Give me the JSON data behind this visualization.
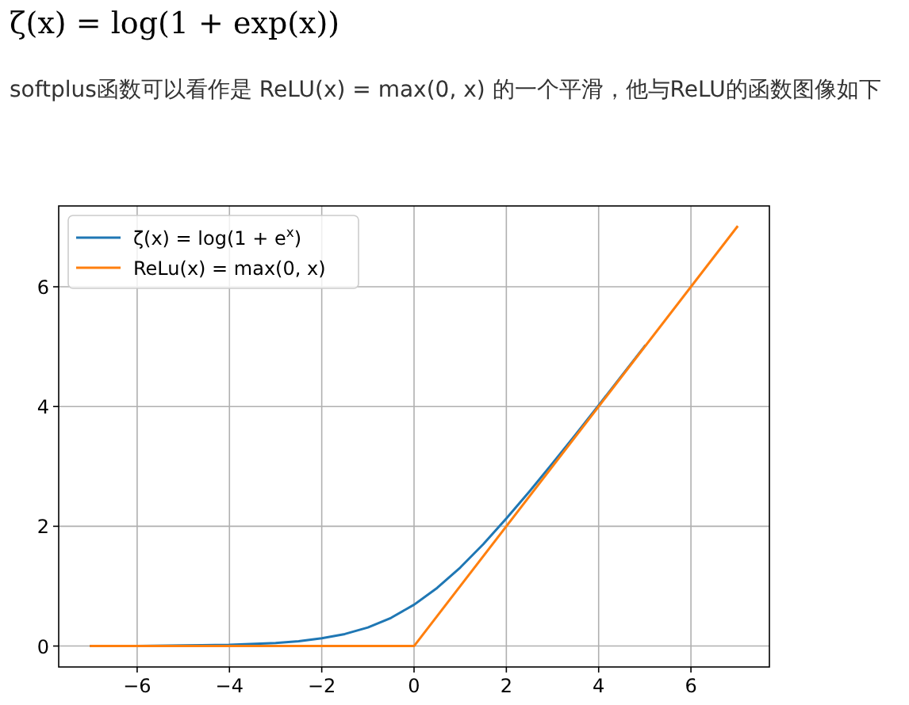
{
  "chart_data": {
    "type": "line",
    "title": "ζ(x) = log(1 + exp(x))",
    "subtitle": "softplus函数可以看作是 ReLU(x) = max(0, x) 的一个平滑，他与ReLU的函数图像如下",
    "series": [
      {
        "name": "ζ(x) = log(1 + e$^{x}$)",
        "color": "#1f77b4",
        "x": [
          -7,
          -6,
          -5,
          -4,
          -3,
          -2.5,
          -2,
          -1.5,
          -1,
          -0.5,
          0,
          0.5,
          1,
          1.5,
          2,
          2.5,
          3,
          3.5,
          4,
          5
        ],
        "values": [
          0,
          0,
          0.01,
          0.02,
          0.05,
          0.08,
          0.13,
          0.2,
          0.31,
          0.47,
          0.69,
          0.97,
          1.31,
          1.7,
          2.13,
          2.58,
          3.05,
          3.53,
          4.02,
          5.01
        ]
      },
      {
        "name": "ReLu(x) = max(0, x)",
        "color": "#ff7f0e",
        "x": [
          -7,
          0,
          7
        ],
        "values": [
          0,
          0,
          7
        ]
      }
    ],
    "xlim": [
      -7.7,
      7.7
    ],
    "ylim": [
      -0.35,
      7.35
    ],
    "xticks": [
      -6,
      -4,
      -2,
      0,
      2,
      4,
      6
    ],
    "yticks": [
      0,
      2,
      4,
      6
    ],
    "grid": true,
    "legend": "top left",
    "line_style": "solid",
    "marker": "none"
  }
}
